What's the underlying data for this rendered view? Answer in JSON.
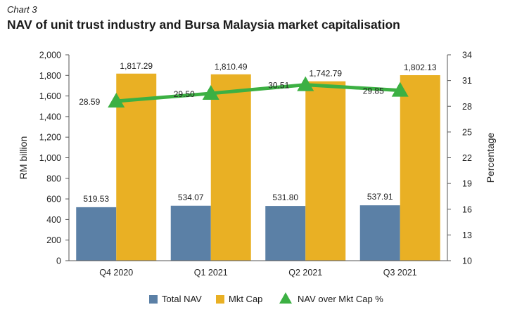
{
  "header": {
    "chart_label": "Chart 3",
    "title": "NAV of unit trust industry and Bursa Malaysia market capitalisation"
  },
  "colors": {
    "total_nav": "#5b80a6",
    "mkt_cap": "#e9b024",
    "ratio_line": "#3cb043"
  },
  "chart_data": {
    "type": "bar",
    "categories": [
      "Q4 2020",
      "Q1 2021",
      "Q2 2021",
      "Q3 2021"
    ],
    "series": [
      {
        "name": "Total NAV",
        "type": "bar",
        "axis": "left",
        "values": [
          519.53,
          534.07,
          531.8,
          537.91
        ],
        "labels": [
          "519.53",
          "534.07",
          "531.80",
          "537.91"
        ]
      },
      {
        "name": "Mkt Cap",
        "type": "bar",
        "axis": "left",
        "values": [
          1817.29,
          1810.49,
          1742.79,
          1802.13
        ],
        "labels": [
          "1,817.29",
          "1,810.49",
          "1,742.79",
          "1,802.13"
        ]
      },
      {
        "name": "NAV over Mkt Cap %",
        "type": "line",
        "axis": "right",
        "marker": "triangle",
        "values": [
          28.59,
          29.5,
          30.51,
          29.85
        ],
        "labels": [
          "28.59",
          "29.50",
          "30.51",
          "29.85"
        ]
      }
    ],
    "ylabel": "RM billion",
    "ylabel_right": "Percentage",
    "ylim": [
      0,
      2000
    ],
    "ylim_right": [
      10,
      34
    ],
    "yticks": [
      "0",
      "200",
      "400",
      "600",
      "800",
      "1,000",
      "1,200",
      "1,400",
      "1,600",
      "1,800",
      "2,000"
    ],
    "yticks_right": [
      "10",
      "13",
      "16",
      "19",
      "22",
      "25",
      "28",
      "31",
      "34"
    ],
    "grid": false,
    "legend_position": "bottom"
  }
}
